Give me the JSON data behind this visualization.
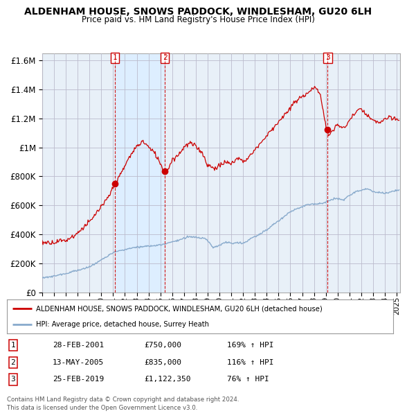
{
  "title": "ALDENHAM HOUSE, SNOWS PADDOCK, WINDLESHAM, GU20 6LH",
  "subtitle": "Price paid vs. HM Land Registry's House Price Index (HPI)",
  "legend_line1": "ALDENHAM HOUSE, SNOWS PADDOCK, WINDLESHAM, GU20 6LH (detached house)",
  "legend_line2": "HPI: Average price, detached house, Surrey Heath",
  "footer1": "Contains HM Land Registry data © Crown copyright and database right 2024.",
  "footer2": "This data is licensed under the Open Government Licence v3.0.",
  "sales": [
    {
      "num": 1,
      "date": "28-FEB-2001",
      "price": "£750,000",
      "hpi": "169% ↑ HPI",
      "year": 2001.16
    },
    {
      "num": 2,
      "date": "13-MAY-2005",
      "price": "£835,000",
      "hpi": "116% ↑ HPI",
      "year": 2005.37
    },
    {
      "num": 3,
      "date": "25-FEB-2019",
      "price": "£1,122,350",
      "hpi": "76% ↑ HPI",
      "year": 2019.16
    }
  ],
  "sale_prices": [
    750000,
    835000,
    1122350
  ],
  "sale_years": [
    2001.16,
    2005.37,
    2019.16
  ],
  "ylim": [
    0,
    1650000
  ],
  "xlim_start": 1995.3,
  "xlim_end": 2025.3,
  "red_color": "#cc0000",
  "blue_color": "#88aacc",
  "shade_color": "#ddeeff",
  "background_color": "#e8f0f8",
  "plot_bg": "#ffffff",
  "grid_color": "#cccccc"
}
